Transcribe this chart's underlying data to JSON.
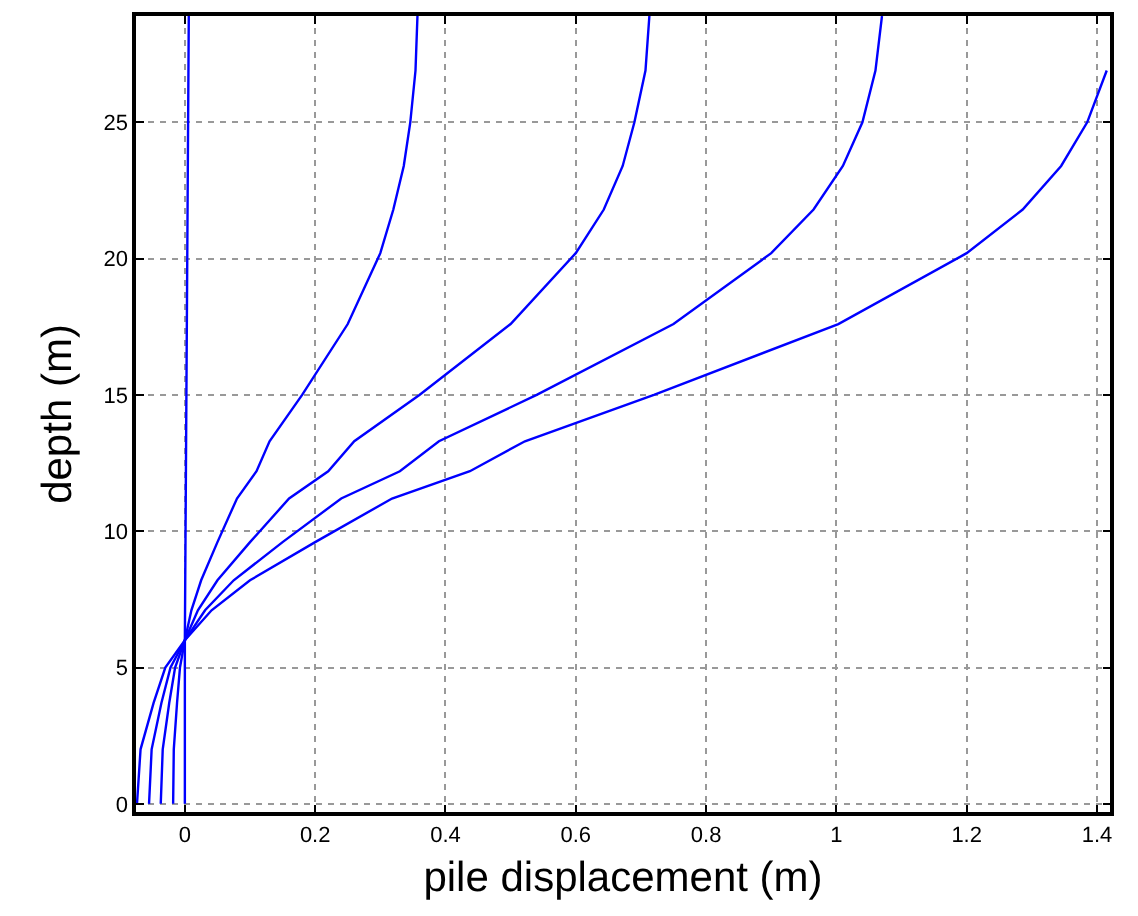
{
  "chart_data": {
    "type": "line",
    "xlabel": "pile displacement (m)",
    "ylabel": "depth (m)",
    "xlim": [
      -0.075,
      1.42
    ],
    "ylim": [
      -0.3,
      28.9
    ],
    "xticks": [
      0,
      0.2,
      0.4,
      0.6,
      0.8,
      1,
      1.2,
      1.4
    ],
    "yticks": [
      0,
      5,
      10,
      15,
      20,
      25
    ],
    "grid": true,
    "marker": "none",
    "line_style": "solid",
    "series": [
      {
        "color": "#0000ff",
        "x": [
          0,
          0,
          0.006
        ],
        "values": [
          0,
          6,
          28.9
        ]
      },
      {
        "color": "#0000ff",
        "x": [
          -0.018,
          -0.017,
          -0.012,
          -0.0075,
          0,
          0.01,
          0.025,
          0.05,
          0.08,
          0.11,
          0.13,
          0.18,
          0.25,
          0.3,
          0.32,
          0.336,
          0.346,
          0.354,
          0.357
        ],
        "values": [
          0,
          2,
          3.7,
          5,
          6,
          7.1,
          8.2,
          9.6,
          11.2,
          12.2,
          13.3,
          15,
          17.6,
          20.2,
          21.8,
          23.4,
          25,
          26.9,
          28.9
        ]
      },
      {
        "color": "#0000ff",
        "x": [
          -0.037,
          -0.034,
          -0.024,
          -0.015,
          0,
          0.02,
          0.05,
          0.1,
          0.16,
          0.22,
          0.26,
          0.36,
          0.5,
          0.6,
          0.643,
          0.672,
          0.69,
          0.707,
          0.713
        ],
        "values": [
          0,
          2,
          3.7,
          5,
          6,
          7.1,
          8.2,
          9.6,
          11.2,
          12.2,
          13.3,
          15,
          17.6,
          20.2,
          21.8,
          23.4,
          25,
          26.9,
          28.9
        ]
      },
      {
        "color": "#0000ff",
        "x": [
          -0.055,
          -0.051,
          -0.036,
          -0.022,
          0,
          0.031,
          0.075,
          0.15,
          0.24,
          0.33,
          0.39,
          0.54,
          0.75,
          0.9,
          0.965,
          1.01,
          1.04,
          1.06,
          1.07
        ],
        "values": [
          0,
          2,
          3.7,
          5,
          6,
          7.1,
          8.2,
          9.6,
          11.2,
          12.2,
          13.3,
          15,
          17.6,
          20.2,
          21.8,
          23.4,
          25,
          26.9,
          28.9
        ]
      },
      {
        "color": "#0000ff",
        "x": [
          -0.0735,
          -0.068,
          -0.048,
          -0.03,
          0,
          0.041,
          0.1,
          0.2,
          0.318,
          0.4375,
          0.522,
          0.72,
          1.003,
          1.2,
          1.286,
          1.345,
          1.385,
          1.415
        ],
        "values": [
          0,
          2,
          3.7,
          5,
          6,
          7.1,
          8.2,
          9.6,
          11.2,
          12.2,
          13.3,
          15,
          17.6,
          20.2,
          21.8,
          23.4,
          25,
          26.9
        ]
      }
    ]
  }
}
